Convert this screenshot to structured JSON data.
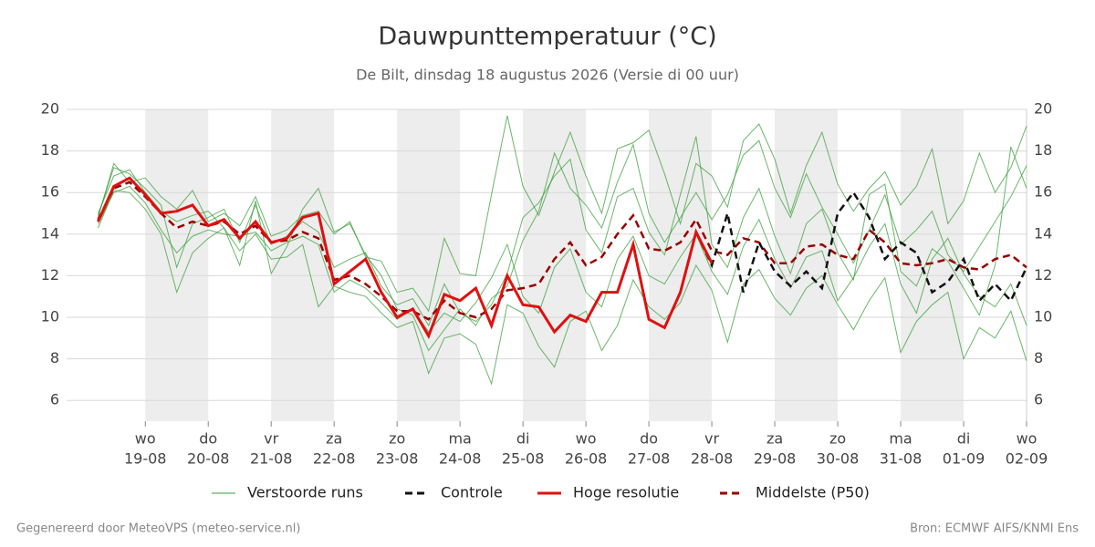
{
  "chart_data": {
    "type": "line",
    "title": "Dauwpunttemperatuur (°C)",
    "subtitle": "De Bilt, dinsdag 18 augustus 2026 (Versie di 00 uur)",
    "footer_left": "Gegenereerd door MeteoVPS (meteo-service.nl)",
    "footer_right": "Bron: ECMWF AIFS/KNMI Ens",
    "xlim": [
      -1.25,
      14
    ],
    "xticks": [
      {
        "value": 0,
        "label": "wo",
        "date": "19-08"
      },
      {
        "value": 1,
        "label": "do",
        "date": "20-08"
      },
      {
        "value": 2,
        "label": "vr",
        "date": "21-08"
      },
      {
        "value": 3,
        "label": "za",
        "date": "22-08"
      },
      {
        "value": 4,
        "label": "zo",
        "date": "23-08"
      },
      {
        "value": 5,
        "label": "ma",
        "date": "24-08"
      },
      {
        "value": 6,
        "label": "di",
        "date": "25-08"
      },
      {
        "value": 7,
        "label": "wo",
        "date": "26-08"
      },
      {
        "value": 8,
        "label": "do",
        "date": "27-08"
      },
      {
        "value": 9,
        "label": "vr",
        "date": "28-08"
      },
      {
        "value": 10,
        "label": "za",
        "date": "29-08"
      },
      {
        "value": 11,
        "label": "zo",
        "date": "30-08"
      },
      {
        "value": 12,
        "label": "ma",
        "date": "31-08"
      },
      {
        "value": 13,
        "label": "di",
        "date": "01-09"
      },
      {
        "value": 14,
        "label": "wo",
        "date": "02-09"
      }
    ],
    "ylim": [
      5,
      20
    ],
    "yticks": [
      6,
      8,
      10,
      12,
      14,
      16,
      18,
      20
    ],
    "y2lim": [
      5,
      20
    ],
    "y2ticks": [
      6,
      8,
      10,
      12,
      14,
      16,
      18,
      20
    ],
    "grid": true,
    "x": [
      -0.75,
      -0.5,
      -0.25,
      0,
      0.25,
      0.5,
      0.75,
      1,
      1.25,
      1.5,
      1.75,
      2,
      2.25,
      2.5,
      2.75,
      3,
      3.25,
      3.5,
      3.75,
      4,
      4.25,
      4.5,
      4.75,
      5,
      5.25,
      5.5,
      5.75,
      6,
      6.25,
      6.5,
      6.75,
      7,
      7.25,
      7.5,
      7.75,
      8,
      8.25,
      8.5,
      8.75,
      9,
      9.25,
      9.5,
      9.75,
      10,
      10.25,
      10.5,
      10.75,
      11,
      11.25,
      11.5,
      11.75,
      12,
      12.25,
      12.5,
      12.75,
      13,
      13.25,
      13.5,
      13.75,
      14
    ],
    "ensemble": {
      "name": "Verstoorde runs",
      "color": "#3a9e3a",
      "members": [
        [
          14.9,
          17.2,
          16.9,
          16.2,
          15.4,
          12.4,
          14.5,
          14.8,
          15.2,
          13.6,
          15.4,
          13.5,
          13.9,
          14.6,
          14.1,
          12.4,
          12.8,
          13.1,
          11.5,
          10.6,
          10.9,
          9.6,
          11.6,
          10.2,
          9.8,
          10.6,
          12.1,
          14.8,
          15.5,
          16.8,
          17.6,
          14.2,
          13.1,
          15.8,
          16.2,
          14.1,
          13.0,
          15.9,
          18.7,
          13.5,
          12.4,
          14.8,
          16.2,
          13.9,
          12.1,
          14.5,
          15.2,
          13.1,
          11.8,
          15.9,
          16.4,
          12.2,
          11.5,
          13.3,
          12.7,
          11.4,
          10.1,
          12.5,
          18.2,
          16.2
        ],
        [
          14.5,
          16.0,
          16.3,
          15.5,
          14.2,
          13.1,
          13.9,
          14.2,
          14.0,
          13.9,
          14.1,
          13.2,
          13.6,
          13.9,
          13.5,
          11.2,
          11.8,
          11.4,
          10.7,
          9.9,
          10.4,
          9.3,
          10.2,
          9.8,
          10.7,
          11.9,
          13.5,
          11.0,
          10.2,
          12.4,
          13.3,
          11.2,
          10.5,
          12.8,
          13.9,
          12.0,
          11.6,
          12.9,
          14.0,
          12.2,
          11.1,
          13.4,
          14.7,
          12.8,
          11.4,
          12.9,
          13.2,
          10.8,
          11.9,
          13.4,
          14.5,
          11.6,
          10.2,
          12.8,
          13.8,
          12.1,
          11.0,
          10.5,
          11.6,
          9.6
        ],
        [
          15.0,
          16.8,
          17.1,
          16.0,
          15.1,
          14.6,
          14.9,
          15.1,
          14.3,
          12.5,
          15.6,
          12.1,
          13.4,
          15.2,
          16.2,
          14.1,
          14.5,
          13.0,
          12.0,
          10.4,
          10.1,
          8.4,
          9.4,
          10.4,
          9.6,
          10.9,
          11.5,
          13.7,
          15.1,
          17.9,
          16.2,
          15.4,
          14.3,
          16.5,
          18.3,
          15.0,
          13.6,
          14.8,
          16.0,
          14.7,
          15.9,
          17.8,
          18.5,
          16.2,
          14.8,
          16.9,
          15.3,
          14.0,
          12.6,
          14.2,
          15.9,
          13.5,
          14.2,
          15.1,
          13.0,
          12.2,
          13.4,
          14.6,
          15.8,
          17.3
        ],
        [
          14.3,
          16.1,
          16.0,
          15.2,
          14.0,
          11.2,
          13.1,
          13.8,
          14.3,
          13.2,
          14.0,
          12.8,
          12.9,
          13.5,
          10.5,
          11.5,
          11.2,
          11.0,
          10.2,
          9.5,
          9.8,
          7.3,
          9.0,
          9.2,
          8.7,
          6.8,
          10.6,
          10.2,
          8.6,
          7.6,
          9.8,
          10.3,
          8.4,
          9.6,
          11.8,
          10.5,
          9.9,
          10.7,
          12.5,
          11.3,
          8.8,
          11.6,
          12.3,
          10.9,
          10.1,
          11.4,
          12.0,
          10.6,
          9.4,
          10.8,
          11.9,
          8.3,
          9.8,
          10.6,
          11.2,
          8.0,
          9.5,
          9.0,
          10.3,
          7.9
        ],
        [
          14.8,
          17.4,
          16.5,
          16.7,
          15.8,
          15.2,
          16.1,
          14.6,
          15.0,
          14.4,
          15.8,
          13.9,
          14.2,
          14.9,
          15.1,
          14.0,
          14.6,
          12.9,
          12.7,
          11.2,
          11.4,
          10.3,
          13.8,
          12.1,
          12.0,
          15.9,
          19.7,
          16.3,
          14.9,
          17.0,
          18.9,
          16.8,
          15.0,
          18.1,
          18.4,
          19.0,
          16.9,
          14.5,
          17.4,
          16.8,
          15.3,
          18.5,
          19.3,
          17.6,
          15.0,
          17.3,
          18.9,
          16.4,
          15.1,
          16.2,
          17.0,
          15.4,
          16.3,
          18.1,
          14.5,
          15.6,
          17.9,
          16.0,
          17.2,
          19.2
        ]
      ]
    },
    "series": [
      {
        "name": "Controle",
        "color": "#111111",
        "dash": true,
        "values": [
          14.6,
          16.3,
          16.7,
          15.9,
          15.0,
          15.1,
          15.4,
          14.4,
          14.7,
          13.8,
          14.6,
          13.6,
          13.8,
          14.8,
          15.0,
          11.6,
          12.2,
          12.8,
          11.2,
          10.0,
          10.4,
          9.1,
          11.1,
          10.8,
          11.4,
          9.6,
          12.0,
          10.6,
          10.5,
          9.3,
          10.1,
          9.8,
          11.2,
          11.2,
          13.5,
          9.9,
          9.5,
          11.2,
          14.1,
          12.5,
          15.0,
          11.2,
          13.6,
          12.2,
          11.5,
          12.2,
          11.4,
          15.0,
          16.0,
          14.8,
          12.8,
          13.6,
          13.1,
          11.2,
          11.7,
          12.8,
          10.8,
          11.6,
          10.8,
          12.4
        ]
      },
      {
        "name": "Hoge resolutie",
        "color": "#e01010",
        "dash": false,
        "values": [
          14.6,
          16.3,
          16.7,
          15.9,
          15.0,
          15.1,
          15.4,
          14.4,
          14.7,
          13.8,
          14.6,
          13.6,
          13.8,
          14.8,
          15.0,
          11.6,
          12.2,
          12.8,
          11.2,
          10.0,
          10.4,
          9.1,
          11.1,
          10.8,
          11.4,
          9.6,
          12.0,
          10.6,
          10.5,
          9.3,
          10.1,
          9.8,
          11.2,
          11.2,
          13.5,
          9.9,
          9.5,
          11.2,
          14.1,
          12.6,
          null,
          null,
          null,
          null,
          null,
          null,
          null,
          null,
          null,
          null,
          null,
          null,
          null,
          null,
          null,
          null,
          null,
          null,
          null,
          null
        ]
      },
      {
        "name": "Middelste (P50)",
        "color": "#990000",
        "dash": true,
        "values": [
          14.7,
          16.2,
          16.5,
          15.8,
          15.0,
          14.3,
          14.6,
          14.4,
          14.6,
          14.0,
          14.4,
          13.6,
          13.7,
          14.1,
          13.8,
          11.8,
          12.0,
          11.6,
          11.0,
          10.3,
          10.3,
          9.9,
          10.8,
          10.2,
          10.0,
          10.4,
          11.3,
          11.4,
          11.6,
          12.8,
          13.6,
          12.5,
          12.9,
          14.0,
          14.9,
          13.3,
          13.2,
          13.6,
          14.7,
          13.2,
          13.0,
          13.8,
          13.6,
          12.6,
          12.6,
          13.4,
          13.5,
          13.0,
          12.8,
          14.2,
          13.6,
          12.6,
          12.5,
          12.6,
          12.8,
          12.4,
          12.3,
          12.8,
          13.0,
          12.4
        ]
      }
    ]
  }
}
